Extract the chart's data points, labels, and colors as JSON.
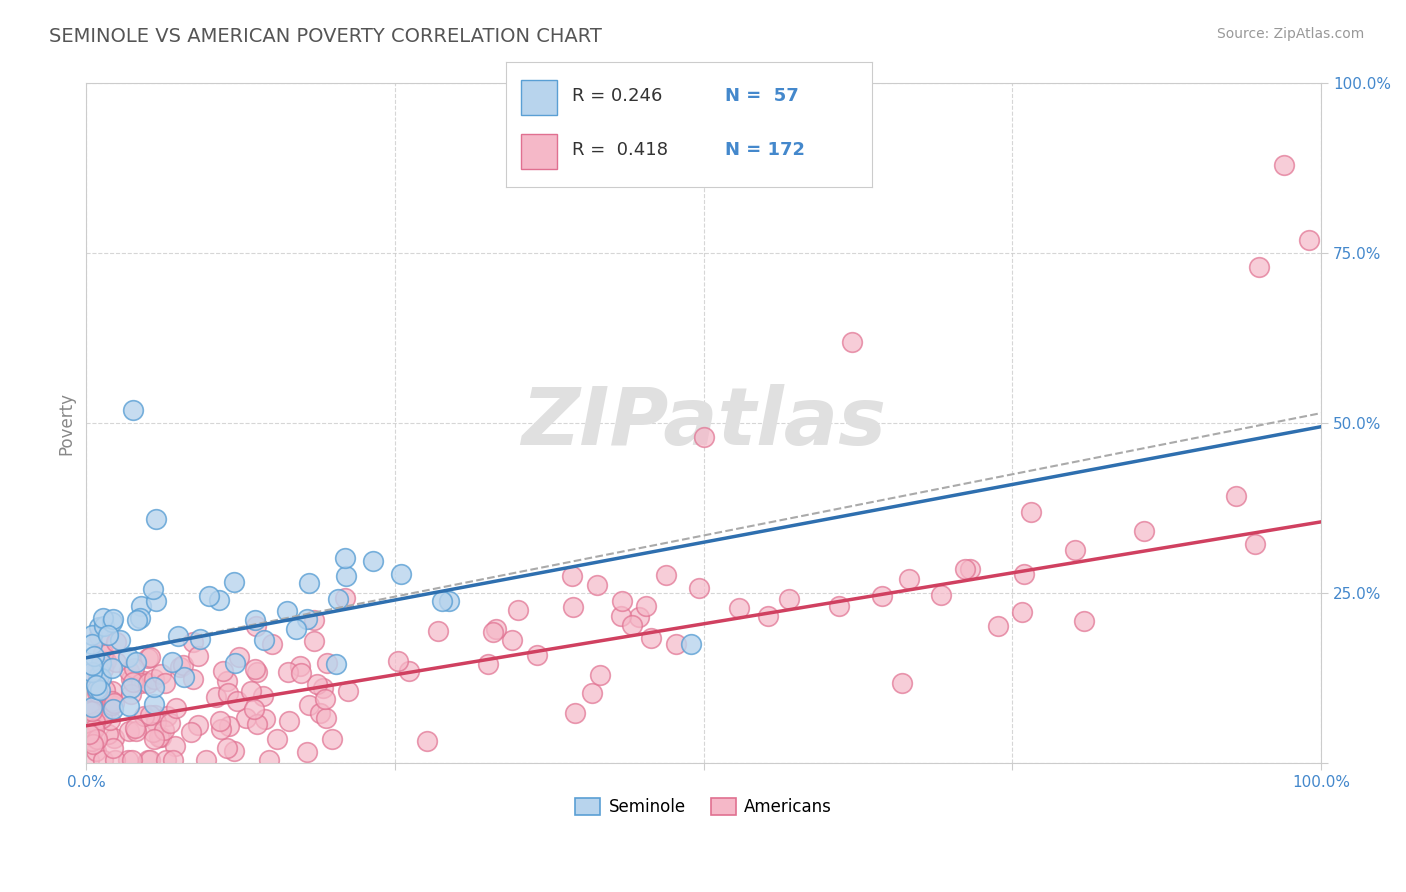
{
  "title": "SEMINOLE VS AMERICAN POVERTY CORRELATION CHART",
  "source": "Source: ZipAtlas.com",
  "ylabel": "Poverty",
  "watermark": "ZIPatlas",
  "seminole_R": 0.246,
  "seminole_N": 57,
  "seminole_color_face": "#b8d4ed",
  "seminole_color_edge": "#5a9fd4",
  "seminole_line_color": "#2e6faf",
  "americans_R": 0.418,
  "americans_N": 172,
  "americans_color_face": "#f5b8c8",
  "americans_color_edge": "#e07090",
  "americans_line_color": "#d04060",
  "xlim": [
    0.0,
    1.0
  ],
  "ylim": [
    0.0,
    1.0
  ],
  "xticks": [
    0.0,
    0.25,
    0.5,
    0.75,
    1.0
  ],
  "yticks": [
    0.0,
    0.25,
    0.5,
    0.75,
    1.0
  ],
  "background_color": "#ffffff",
  "grid_color": "#cccccc",
  "title_color": "#555555",
  "watermark_color": "#e0e0e0",
  "tick_label_color": "#4488cc",
  "seminole_line_x": [
    0.0,
    1.0
  ],
  "seminole_line_y": [
    0.155,
    0.495
  ],
  "americans_line_x": [
    0.0,
    1.0
  ],
  "americans_line_y": [
    0.055,
    0.355
  ],
  "dashed_line_x": [
    0.0,
    1.0
  ],
  "dashed_line_y": [
    0.155,
    0.515
  ]
}
